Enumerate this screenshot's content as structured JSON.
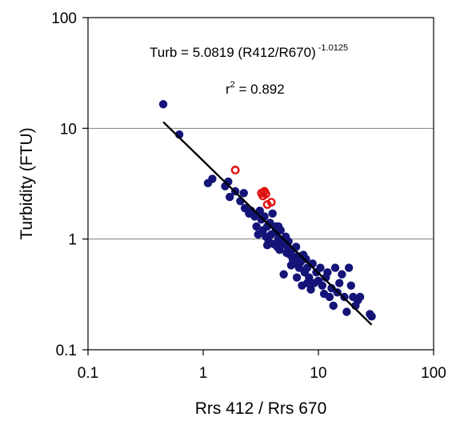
{
  "chart_data": {
    "type": "scatter",
    "title": "",
    "xlabel": "Rrs 412 / Rrs 670",
    "ylabel": "Turbidity (FTU)",
    "xscale": "log",
    "yscale": "log",
    "xlim": [
      0.1,
      100
    ],
    "ylim": [
      0.1,
      100
    ],
    "xticks": [
      0.1,
      1,
      10,
      100
    ],
    "xtick_labels": [
      "0.1",
      "1",
      "10",
      "100"
    ],
    "yticks": [
      0.1,
      1,
      10,
      100
    ],
    "ytick_labels": [
      "0.1",
      "1",
      "10",
      "100"
    ],
    "grid": "horizontal major lines",
    "legend": "none",
    "annotations": {
      "equation_main": "Turb = 5.0819 (R412/R670)",
      "equation_exponent": "-1.0125",
      "r2_prefix": "r",
      "r2_sup": "2",
      "r2_value": " = 0.892"
    },
    "fit_line": {
      "a": 5.0819,
      "b": -1.0125,
      "x_range": [
        0.45,
        29
      ],
      "color": "#000000"
    },
    "series": [
      {
        "marker": "filled-circle",
        "color": "#141478",
        "points": [
          [
            0.45,
            16.5
          ],
          [
            0.62,
            8.8
          ],
          [
            1.1,
            3.2
          ],
          [
            1.2,
            3.5
          ],
          [
            1.55,
            3.0
          ],
          [
            1.7,
            2.4
          ],
          [
            1.65,
            3.3
          ],
          [
            1.9,
            2.7
          ],
          [
            2.1,
            2.2
          ],
          [
            2.25,
            2.6
          ],
          [
            2.3,
            1.9
          ],
          [
            2.5,
            1.7
          ],
          [
            2.6,
            1.8
          ],
          [
            2.8,
            1.6
          ],
          [
            2.9,
            1.3
          ],
          [
            3.0,
            1.1
          ],
          [
            3.1,
            1.8
          ],
          [
            3.2,
            1.5
          ],
          [
            3.3,
            1.2
          ],
          [
            3.4,
            1.6
          ],
          [
            3.5,
            1.05
          ],
          [
            3.6,
            1.3
          ],
          [
            3.7,
            0.95
          ],
          [
            3.8,
            1.4
          ],
          [
            3.9,
            1.1
          ],
          [
            4.0,
            1.7
          ],
          [
            4.1,
            0.9
          ],
          [
            4.2,
            1.15
          ],
          [
            4.3,
            1.3
          ],
          [
            4.4,
            0.85
          ],
          [
            4.5,
            1.0
          ],
          [
            4.6,
            0.8
          ],
          [
            4.7,
            1.2
          ],
          [
            4.8,
            0.95
          ],
          [
            5.0,
            0.48
          ],
          [
            5.1,
            0.9
          ],
          [
            5.2,
            1.05
          ],
          [
            5.3,
            0.75
          ],
          [
            5.4,
            0.85
          ],
          [
            5.5,
            0.95
          ],
          [
            5.7,
            0.72
          ],
          [
            5.9,
            0.8
          ],
          [
            6.0,
            0.65
          ],
          [
            6.2,
            0.6
          ],
          [
            6.4,
            0.85
          ],
          [
            6.6,
            0.7
          ],
          [
            6.8,
            0.55
          ],
          [
            7.0,
            0.62
          ],
          [
            7.2,
            0.38
          ],
          [
            7.4,
            0.72
          ],
          [
            7.6,
            0.5
          ],
          [
            7.8,
            0.66
          ],
          [
            8.0,
            0.55
          ],
          [
            8.3,
            0.45
          ],
          [
            8.6,
            0.35
          ],
          [
            8.9,
            0.6
          ],
          [
            9.2,
            0.4
          ],
          [
            9.6,
            0.5
          ],
          [
            10.0,
            0.42
          ],
          [
            10.4,
            0.55
          ],
          [
            10.8,
            0.38
          ],
          [
            11.2,
            0.32
          ],
          [
            11.6,
            0.45
          ],
          [
            12.0,
            0.5
          ],
          [
            12.5,
            0.3
          ],
          [
            13.0,
            0.36
          ],
          [
            13.5,
            0.25
          ],
          [
            14.0,
            0.55
          ],
          [
            14.6,
            0.33
          ],
          [
            15.2,
            0.4
          ],
          [
            16.0,
            0.48
          ],
          [
            16.8,
            0.3
          ],
          [
            17.6,
            0.22
          ],
          [
            18.4,
            0.55
          ],
          [
            19.2,
            0.38
          ],
          [
            20.0,
            0.3
          ],
          [
            21.0,
            0.25
          ],
          [
            22.0,
            0.28
          ],
          [
            23.0,
            0.3
          ],
          [
            28.0,
            0.21
          ],
          [
            29.0,
            0.2
          ],
          [
            6.5,
            0.45
          ],
          [
            8.0,
            0.4
          ],
          [
            5.8,
            0.58
          ],
          [
            4.5,
            1.3
          ],
          [
            3.6,
            0.88
          ]
        ]
      },
      {
        "marker": "open-circle",
        "color": "#e01010",
        "points": [
          [
            1.9,
            4.2
          ],
          [
            3.2,
            2.6
          ],
          [
            3.35,
            2.65
          ],
          [
            3.5,
            2.55
          ],
          [
            3.4,
            2.7
          ],
          [
            3.3,
            2.45
          ],
          [
            3.6,
            2.05
          ],
          [
            3.9,
            2.15
          ]
        ]
      }
    ]
  }
}
